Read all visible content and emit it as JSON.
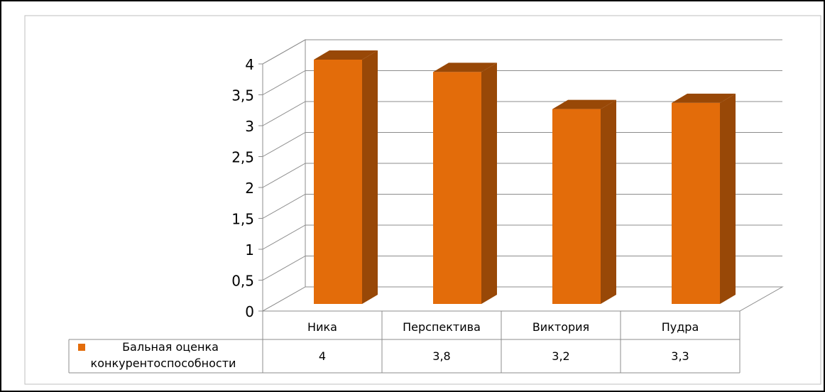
{
  "chart_data": {
    "type": "bar",
    "categories": [
      "Ника",
      "Перспектива",
      "Виктория",
      "Пудра"
    ],
    "series": [
      {
        "name": "Бальная оценка конкурентоспособности",
        "name_lines": [
          "Бальная оценка",
          "конкурентоспособности"
        ],
        "values": [
          4,
          3.8,
          3.2,
          3.3
        ],
        "value_labels": [
          "4",
          "3,8",
          "3,2",
          "3,3"
        ],
        "color": "#E36C0A",
        "side_color": "#984807"
      }
    ],
    "ylim": [
      0,
      4
    ],
    "ytick_values": [
      0,
      0.5,
      1,
      1.5,
      2,
      2.5,
      3,
      3.5,
      4
    ],
    "yticks": [
      "0",
      "0,5",
      "1",
      "1,5",
      "2",
      "2,5",
      "3",
      "3,5",
      "4"
    ],
    "grid": true,
    "style": "3d-column",
    "data_table": true,
    "legend": "data-table-left"
  }
}
